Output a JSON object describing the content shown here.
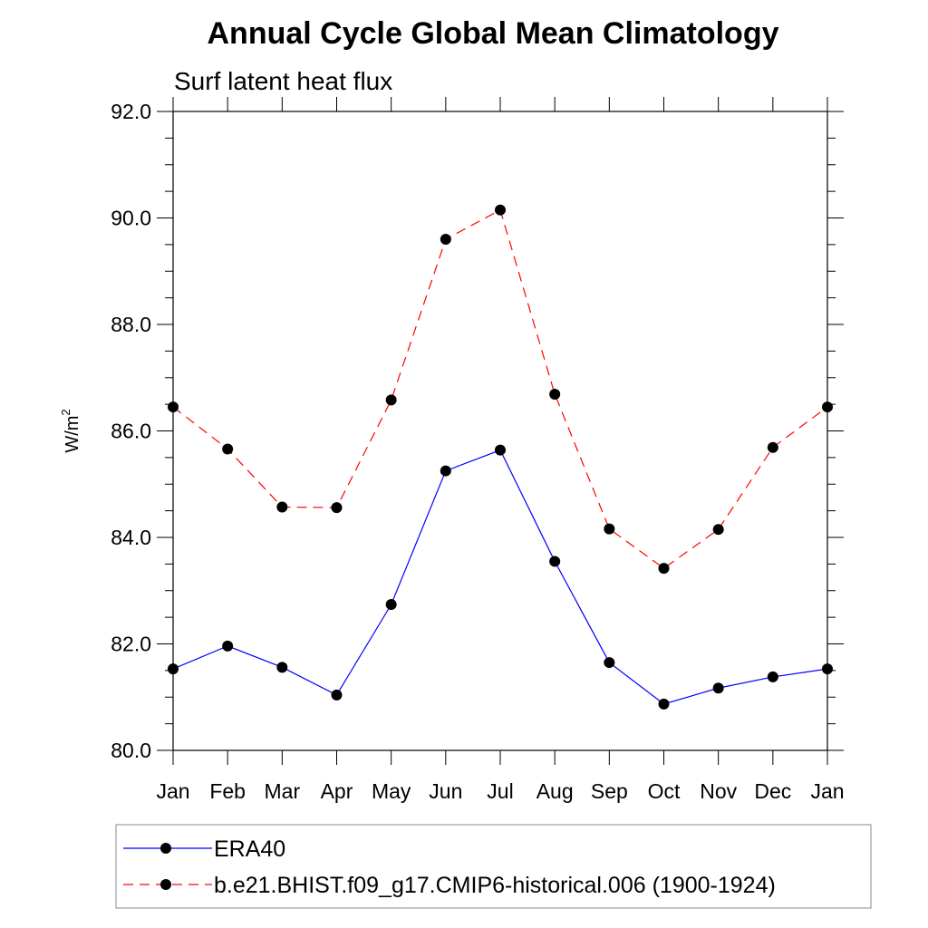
{
  "chart_data": {
    "type": "line",
    "title": "Annual Cycle Global Mean Climatology",
    "subtitle": "Surf latent heat flux",
    "xlabel": "",
    "ylabel": "W/m",
    "ylabel_superscript": "2",
    "categories": [
      "Jan",
      "Feb",
      "Mar",
      "Apr",
      "May",
      "Jun",
      "Jul",
      "Aug",
      "Sep",
      "Oct",
      "Nov",
      "Dec",
      "Jan"
    ],
    "ylim": [
      80.0,
      92.0
    ],
    "yticks": [
      "80.0",
      "82.0",
      "84.0",
      "86.0",
      "88.0",
      "90.0",
      "92.0"
    ],
    "grid": false,
    "legend_position": "bottom",
    "series": [
      {
        "name": "ERA40",
        "color": "#0000ff",
        "line_style": "solid",
        "marker": "filled-circle",
        "values": [
          81.53,
          81.96,
          81.56,
          81.04,
          82.74,
          85.25,
          85.64,
          83.55,
          81.65,
          80.87,
          81.17,
          81.38,
          81.53
        ]
      },
      {
        "name": "b.e21.BHIST.f09_g17.CMIP6-historical.006 (1900-1924)",
        "color": "#ff0000",
        "line_style": "dashed",
        "marker": "filled-circle",
        "values": [
          86.45,
          85.66,
          84.57,
          84.56,
          86.58,
          89.6,
          90.15,
          86.69,
          84.16,
          83.42,
          84.15,
          85.69,
          86.45
        ]
      }
    ]
  }
}
